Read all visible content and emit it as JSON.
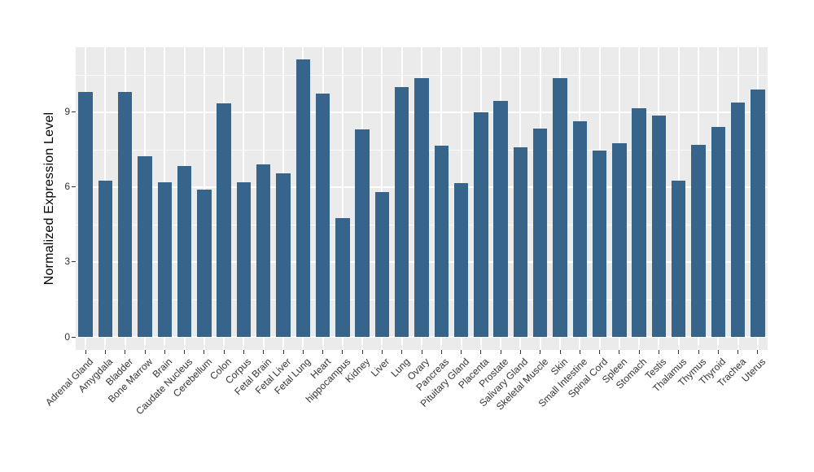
{
  "chart_data": {
    "type": "bar",
    "ylabel": "Normalized Expression Level",
    "xlabel": "",
    "categories": [
      "Adrenal Gland",
      "Amygdala",
      "Bladder",
      "Bone Marrow",
      "Brain",
      "Caudate Nucleus",
      "Cerebellum",
      "Colon",
      "Corpus",
      "Fetal Brain",
      "Fetal Liver",
      "Fetal Lung",
      "Heart",
      "hippocampus",
      "Kidney",
      "Liver",
      "Lung",
      "Ovary",
      "Pancreas",
      "Pituitary Gland",
      "Placenta",
      "Prostate",
      "Salivary Gland",
      "Skeletal Muscle",
      "Skin",
      "Small Intestine",
      "Spinal Cord",
      "Spleen",
      "Stomach",
      "Testis",
      "Thalamus",
      "Thymus",
      "Thyroid",
      "Trachea",
      "Uterus"
    ],
    "values": [
      9.8,
      6.25,
      9.8,
      7.25,
      6.2,
      6.85,
      5.9,
      9.35,
      6.2,
      6.9,
      6.55,
      11.1,
      9.75,
      4.75,
      8.3,
      5.8,
      10.0,
      10.35,
      7.65,
      6.15,
      9.0,
      9.45,
      7.6,
      8.35,
      10.35,
      8.65,
      7.45,
      7.75,
      9.15,
      8.85,
      6.25,
      7.7,
      8.4,
      9.4,
      9.9
    ],
    "y_ticks": [
      0,
      3,
      6,
      9
    ],
    "y_tick_labels": [
      "0",
      "3",
      "6",
      "9"
    ],
    "y_minor_ticks": [
      1.5,
      4.5,
      7.5,
      10.5
    ],
    "ylim": [
      -0.52,
      11.6
    ],
    "grid": true,
    "legend": false,
    "x_label_rotation_deg": 45,
    "colors": {
      "bar": "#36648B",
      "panel_background": "#EBEBEB",
      "gridline": "#FFFFFF",
      "axis_text": "#333333",
      "axis_title": "#000000",
      "tick_mark": "#333333",
      "figure_background": "#FFFFFF"
    }
  }
}
